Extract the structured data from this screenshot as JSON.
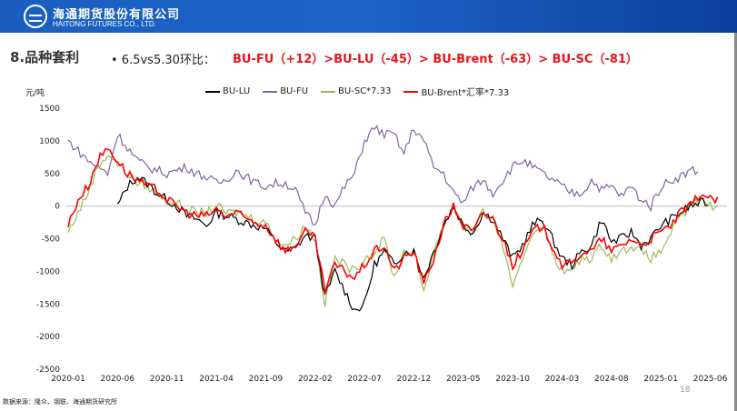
{
  "header": {
    "company_cn": "海通期货股份有限公司",
    "company_en": "HAITONG FUTURES CO., LTD."
  },
  "section_title": "8.品种套利",
  "bullet": "•  6.5vs5.30环比：",
  "comparison": "BU-FU（+12）>BU-LU（-45）> BU-Brent（-63）> BU-SC（-81）",
  "source": "数据来源：隆众、钢联、海通期货研究所",
  "page_number": "18",
  "chart_data": {
    "type": "line",
    "title": "",
    "xlabel": "",
    "ylabel": "元/吨",
    "ylim": [
      -2500,
      1500
    ],
    "yticks": [
      1500,
      1000,
      500,
      0,
      -500,
      -1000,
      -1500,
      -2000,
      -2500
    ],
    "xticks": [
      "2020-01",
      "2020-06",
      "2020-11",
      "2021-04",
      "2021-09",
      "2022-02",
      "2022-07",
      "2022-12",
      "2023-05",
      "2023-10",
      "2024-03",
      "2024-08",
      "2025-01",
      "2025-06"
    ],
    "x_start": "2020-01",
    "x_step": "month",
    "legend": "top",
    "grid": false,
    "series": [
      {
        "name": "BU-LU",
        "color": "#000000",
        "start": "2020-06",
        "values": [
          0,
          300,
          450,
          350,
          200,
          100,
          0,
          -150,
          -200,
          -300,
          -100,
          -150,
          -200,
          -250,
          -300,
          -350,
          -550,
          -700,
          -650,
          -450,
          -500,
          -1400,
          -1000,
          -1300,
          -1600,
          -1500,
          -900,
          -700,
          -900,
          -700,
          -700,
          -1100,
          -700,
          -300,
          0,
          -300,
          -400,
          -100,
          -200,
          -500,
          -800,
          -600,
          -300,
          -200,
          -500,
          -800,
          -900,
          -700,
          -600,
          -200,
          -550,
          -500,
          -400,
          -600,
          -500,
          -300,
          -200,
          -100,
          0,
          50
        ]
      },
      {
        "name": "BU-FU",
        "color": "#8064a2",
        "values": [
          1000,
          850,
          700,
          600,
          500,
          1100,
          900,
          700,
          600,
          550,
          500,
          550,
          600,
          500,
          450,
          350,
          400,
          550,
          450,
          350,
          300,
          350,
          350,
          250,
          -100,
          -300,
          200,
          0,
          300,
          500,
          1000,
          1200,
          1100,
          1100,
          800,
          1200,
          1000,
          600,
          500,
          200,
          50,
          300,
          400,
          200,
          400,
          600,
          700,
          600,
          500,
          400,
          300,
          200,
          200,
          400,
          250,
          300,
          150,
          300,
          100,
          0,
          300,
          400,
          450,
          550
        ]
      },
      {
        "name": "BU-SC*7.33",
        "color": "#9bbb59",
        "values": [
          -400,
          -100,
          200,
          600,
          800,
          650,
          500,
          350,
          300,
          200,
          100,
          50,
          -50,
          -100,
          -100,
          0,
          -100,
          -100,
          -150,
          -200,
          -250,
          -500,
          -600,
          -500,
          -300,
          -500,
          -1500,
          -800,
          -900,
          -1000,
          -800,
          -700,
          -500,
          -1100,
          -700,
          -700,
          -1300,
          -700,
          -300,
          0,
          -300,
          -400,
          -100,
          -200,
          -600,
          -1300,
          -800,
          -400,
          -300,
          -700,
          -1000,
          -1000,
          -800,
          -800,
          -600,
          -800,
          -700,
          -600,
          -700,
          -800,
          -700,
          -400,
          -200,
          0,
          100,
          0
        ]
      },
      {
        "name": "BU-Brent*汇率*7.33",
        "color": "#ff0000",
        "values": [
          -300,
          100,
          300,
          700,
          900,
          700,
          500,
          400,
          300,
          250,
          100,
          0,
          -100,
          -150,
          -150,
          -50,
          -150,
          -100,
          -200,
          -250,
          -300,
          -500,
          -700,
          -600,
          -400,
          -500,
          -1300,
          -900,
          -1000,
          -1100,
          -900,
          -700,
          -600,
          -1000,
          -800,
          -700,
          -1200,
          -800,
          -300,
          0,
          -300,
          -400,
          -100,
          -200,
          -500,
          -900,
          -700,
          -400,
          -300,
          -600,
          -900,
          -900,
          -700,
          -700,
          -500,
          -700,
          -600,
          -500,
          -600,
          -500,
          -400,
          -300,
          -100,
          0,
          200,
          100
        ]
      }
    ]
  }
}
